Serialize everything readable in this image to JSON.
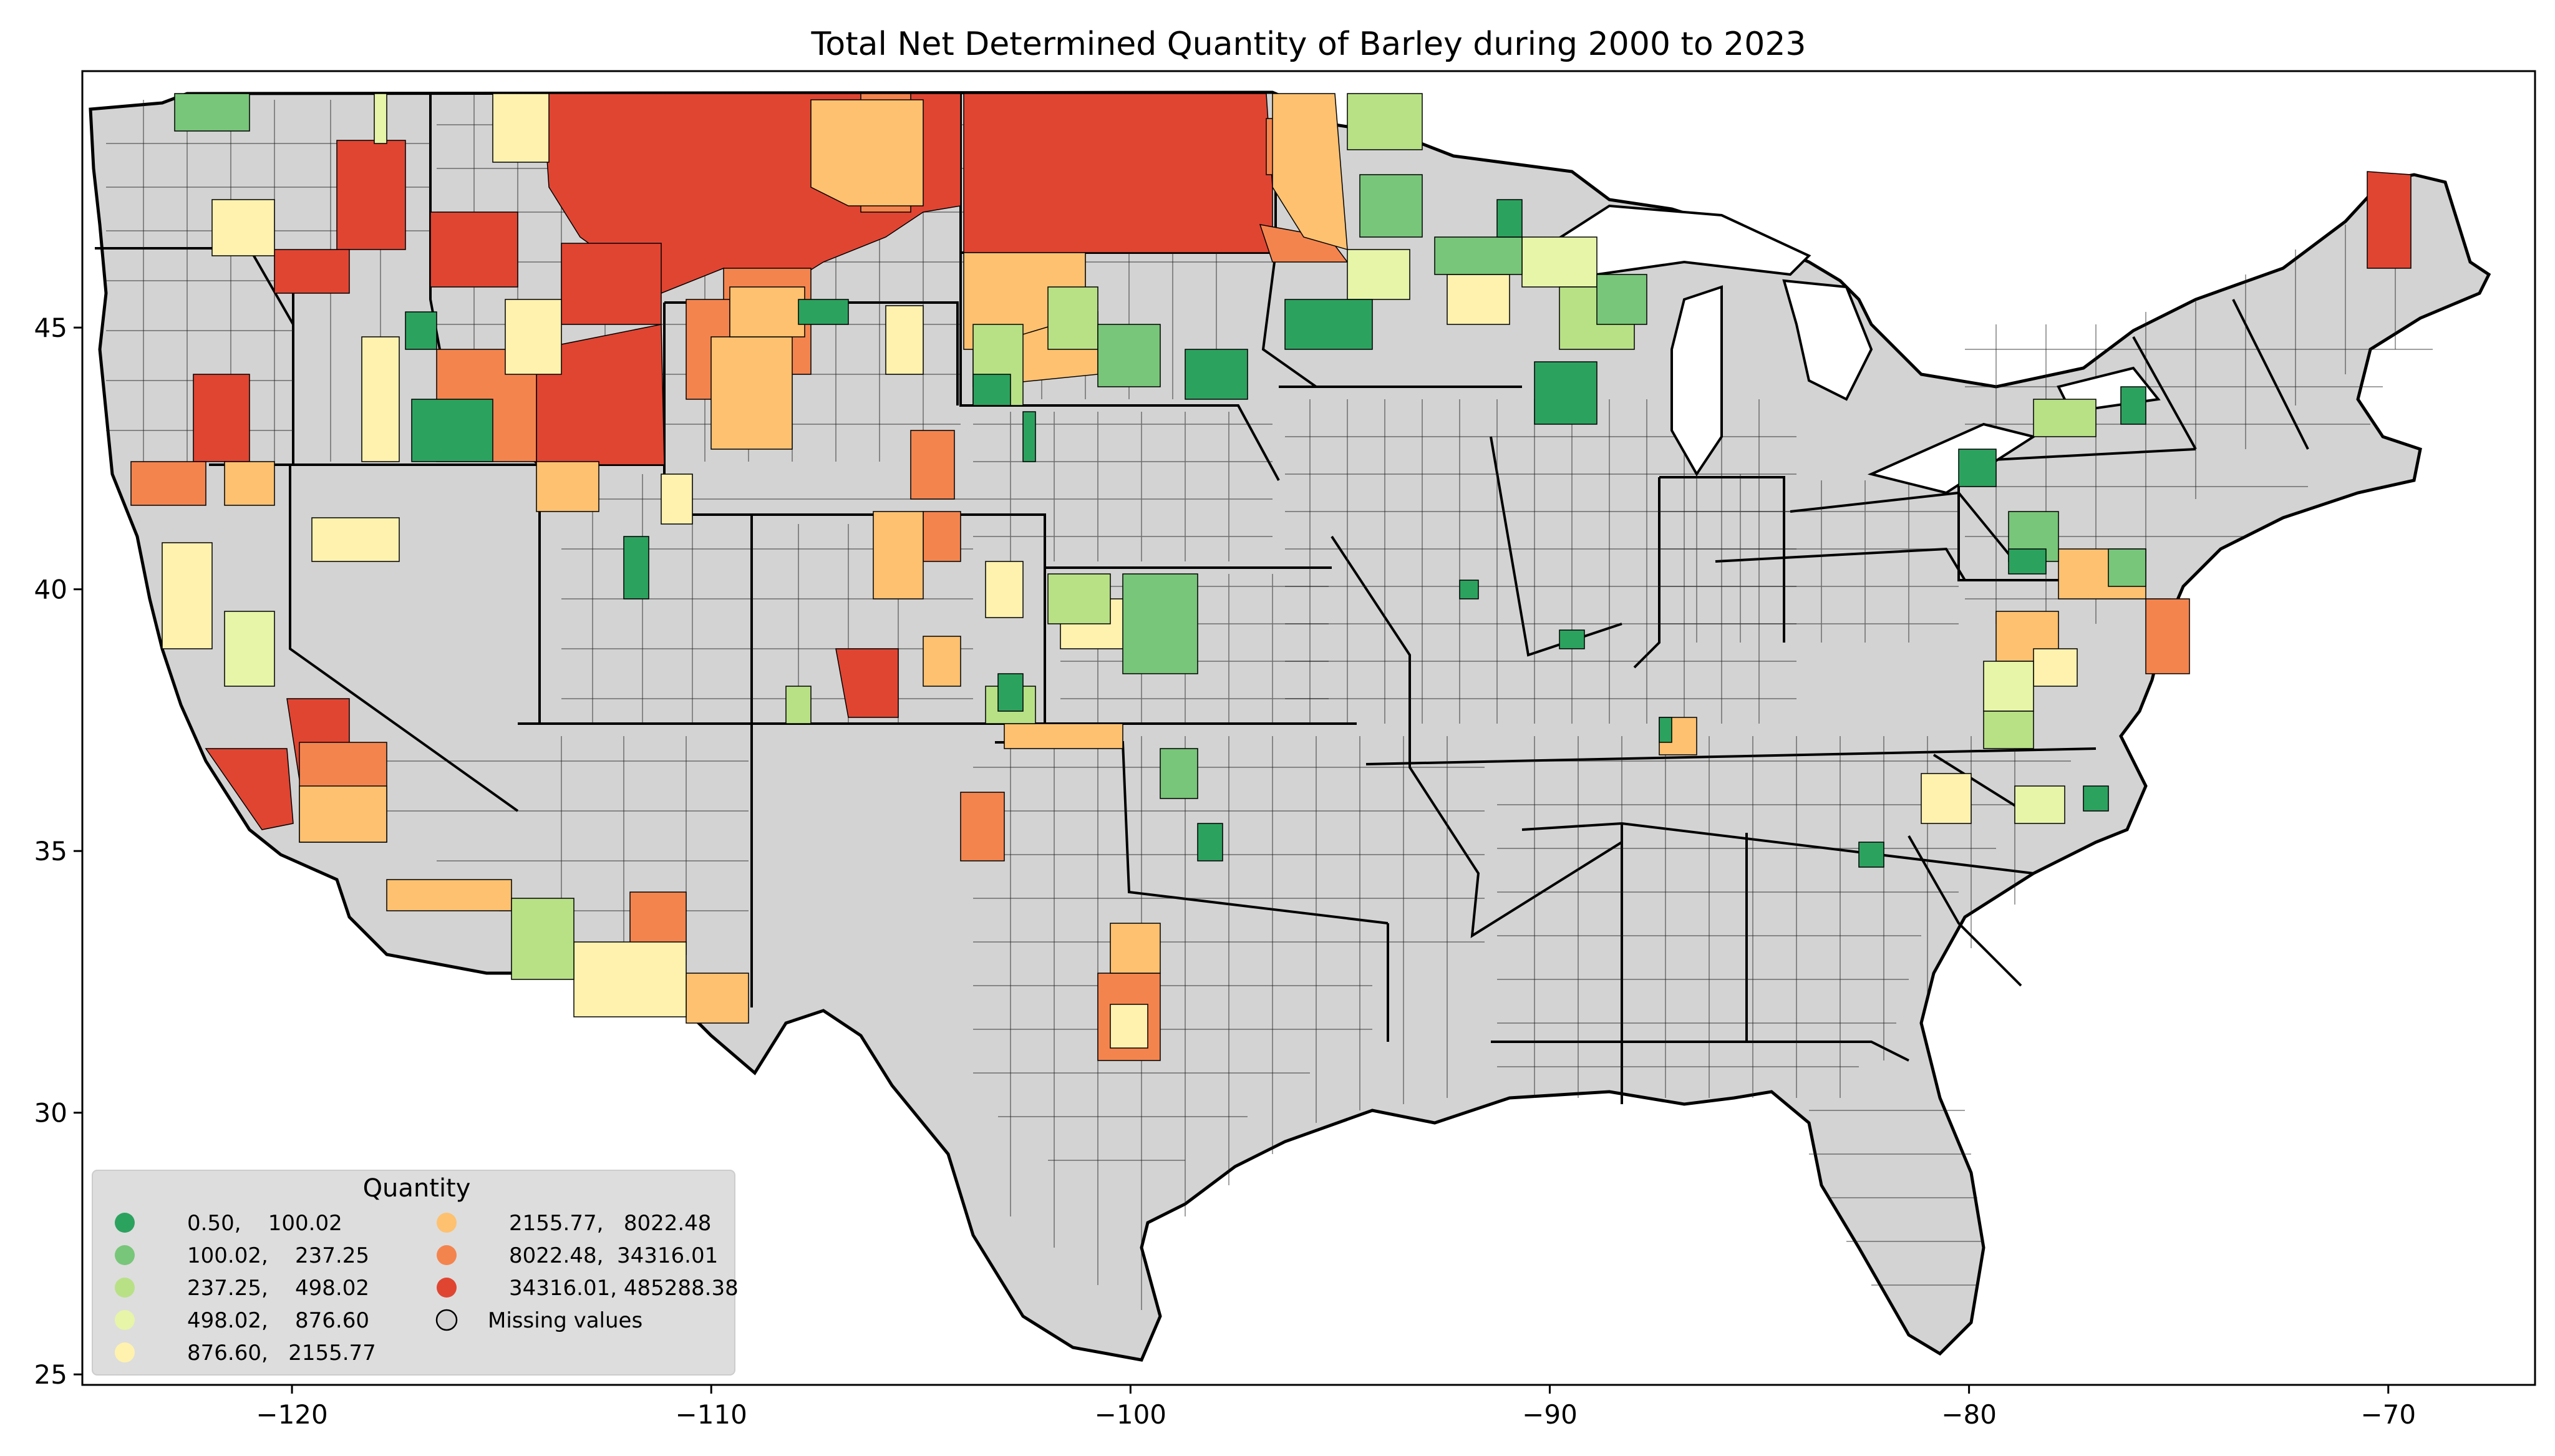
{
  "title": "Total Net Determined Quantity of Barley during 2000 to 2023",
  "chart_data": {
    "type": "choropleth",
    "title": "Total Net Determined Quantity of Barley during 2000 to 2023",
    "xlabel": "",
    "ylabel": "",
    "xlim": [
      -125,
      -66.5
    ],
    "ylim": [
      24.8,
      49.9
    ],
    "x_ticks": [
      -120,
      -110,
      -100,
      -90,
      -80,
      -70
    ],
    "y_ticks": [
      25,
      30,
      35,
      40,
      45
    ],
    "x_tick_labels": [
      "−120",
      "−110",
      "−100",
      "−90",
      "−80",
      "−70"
    ],
    "y_tick_labels": [
      "25",
      "30",
      "35",
      "40",
      "45"
    ],
    "grid": false,
    "legend": {
      "title": "Quantity",
      "placement": "lower-left",
      "entries": [
        {
          "label": "0.50,    100.02",
          "color": "#2ca25f"
        },
        {
          "label": "100.02,    237.25",
          "color": "#78c679"
        },
        {
          "label": "237.25,    498.02",
          "color": "#b8e186"
        },
        {
          "label": "498.02,    876.60",
          "color": "#e6f5a8"
        },
        {
          "label": "876.60,   2155.77",
          "color": "#fff2ae"
        },
        {
          "label": "2155.77,   8022.48",
          "color": "#fdc170"
        },
        {
          "label": "8022.48,  34316.01",
          "color": "#f4844e"
        },
        {
          "label": "34316.01, 485288.38",
          "color": "#e04532"
        },
        {
          "label": "Missing values",
          "color": "#d3d3d3",
          "hollow": true
        }
      ]
    }
  },
  "colors": {
    "missing": "#d3d3d3",
    "border": "#000000"
  }
}
